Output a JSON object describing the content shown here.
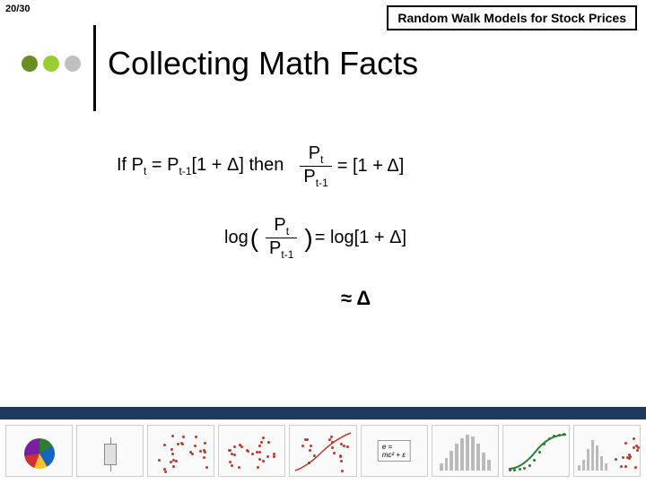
{
  "page_number": "20/30",
  "topic_title": "Random Walk Models for Stock Prices",
  "slide_title": "Collecting Math Facts",
  "dots_colors": [
    "#6b8e23",
    "#9acd32",
    "#c0c0c0"
  ],
  "bottom_bar_color": "#1f3a5f",
  "equations": {
    "line1_prefix": "If P",
    "line1_sub1": "t",
    "line1_mid": " = P",
    "line1_sub2": "t-1",
    "line1_bracket": "[1 + Δ]  then",
    "line1_rhs": " = [1 + Δ]",
    "frac_num_p": "P",
    "frac_num_sub": "t",
    "frac_den_p": "P",
    "frac_den_sub": "t-1",
    "line2_log": "log",
    "line2_rhs": " = log[1 + Δ]",
    "line3": "≈  Δ"
  },
  "thumbnails": [
    {
      "type": "pie",
      "title": ""
    },
    {
      "type": "boxplot",
      "title": ""
    },
    {
      "type": "scatter",
      "title": "",
      "color": "#c0392b"
    },
    {
      "type": "scatter",
      "title": "",
      "color": "#c0392b"
    },
    {
      "type": "curve",
      "title": "",
      "color": "#c0392b"
    },
    {
      "type": "formula",
      "title": "",
      "text": "e = mc² + ε"
    },
    {
      "type": "bars",
      "title": "",
      "heights": [
        8,
        14,
        22,
        30,
        36,
        40,
        38,
        30,
        20,
        12
      ]
    },
    {
      "type": "scurve",
      "title": "",
      "color": "#2e7d32"
    },
    {
      "type": "hist-scatter",
      "title": "",
      "color": "#c0392b"
    }
  ]
}
